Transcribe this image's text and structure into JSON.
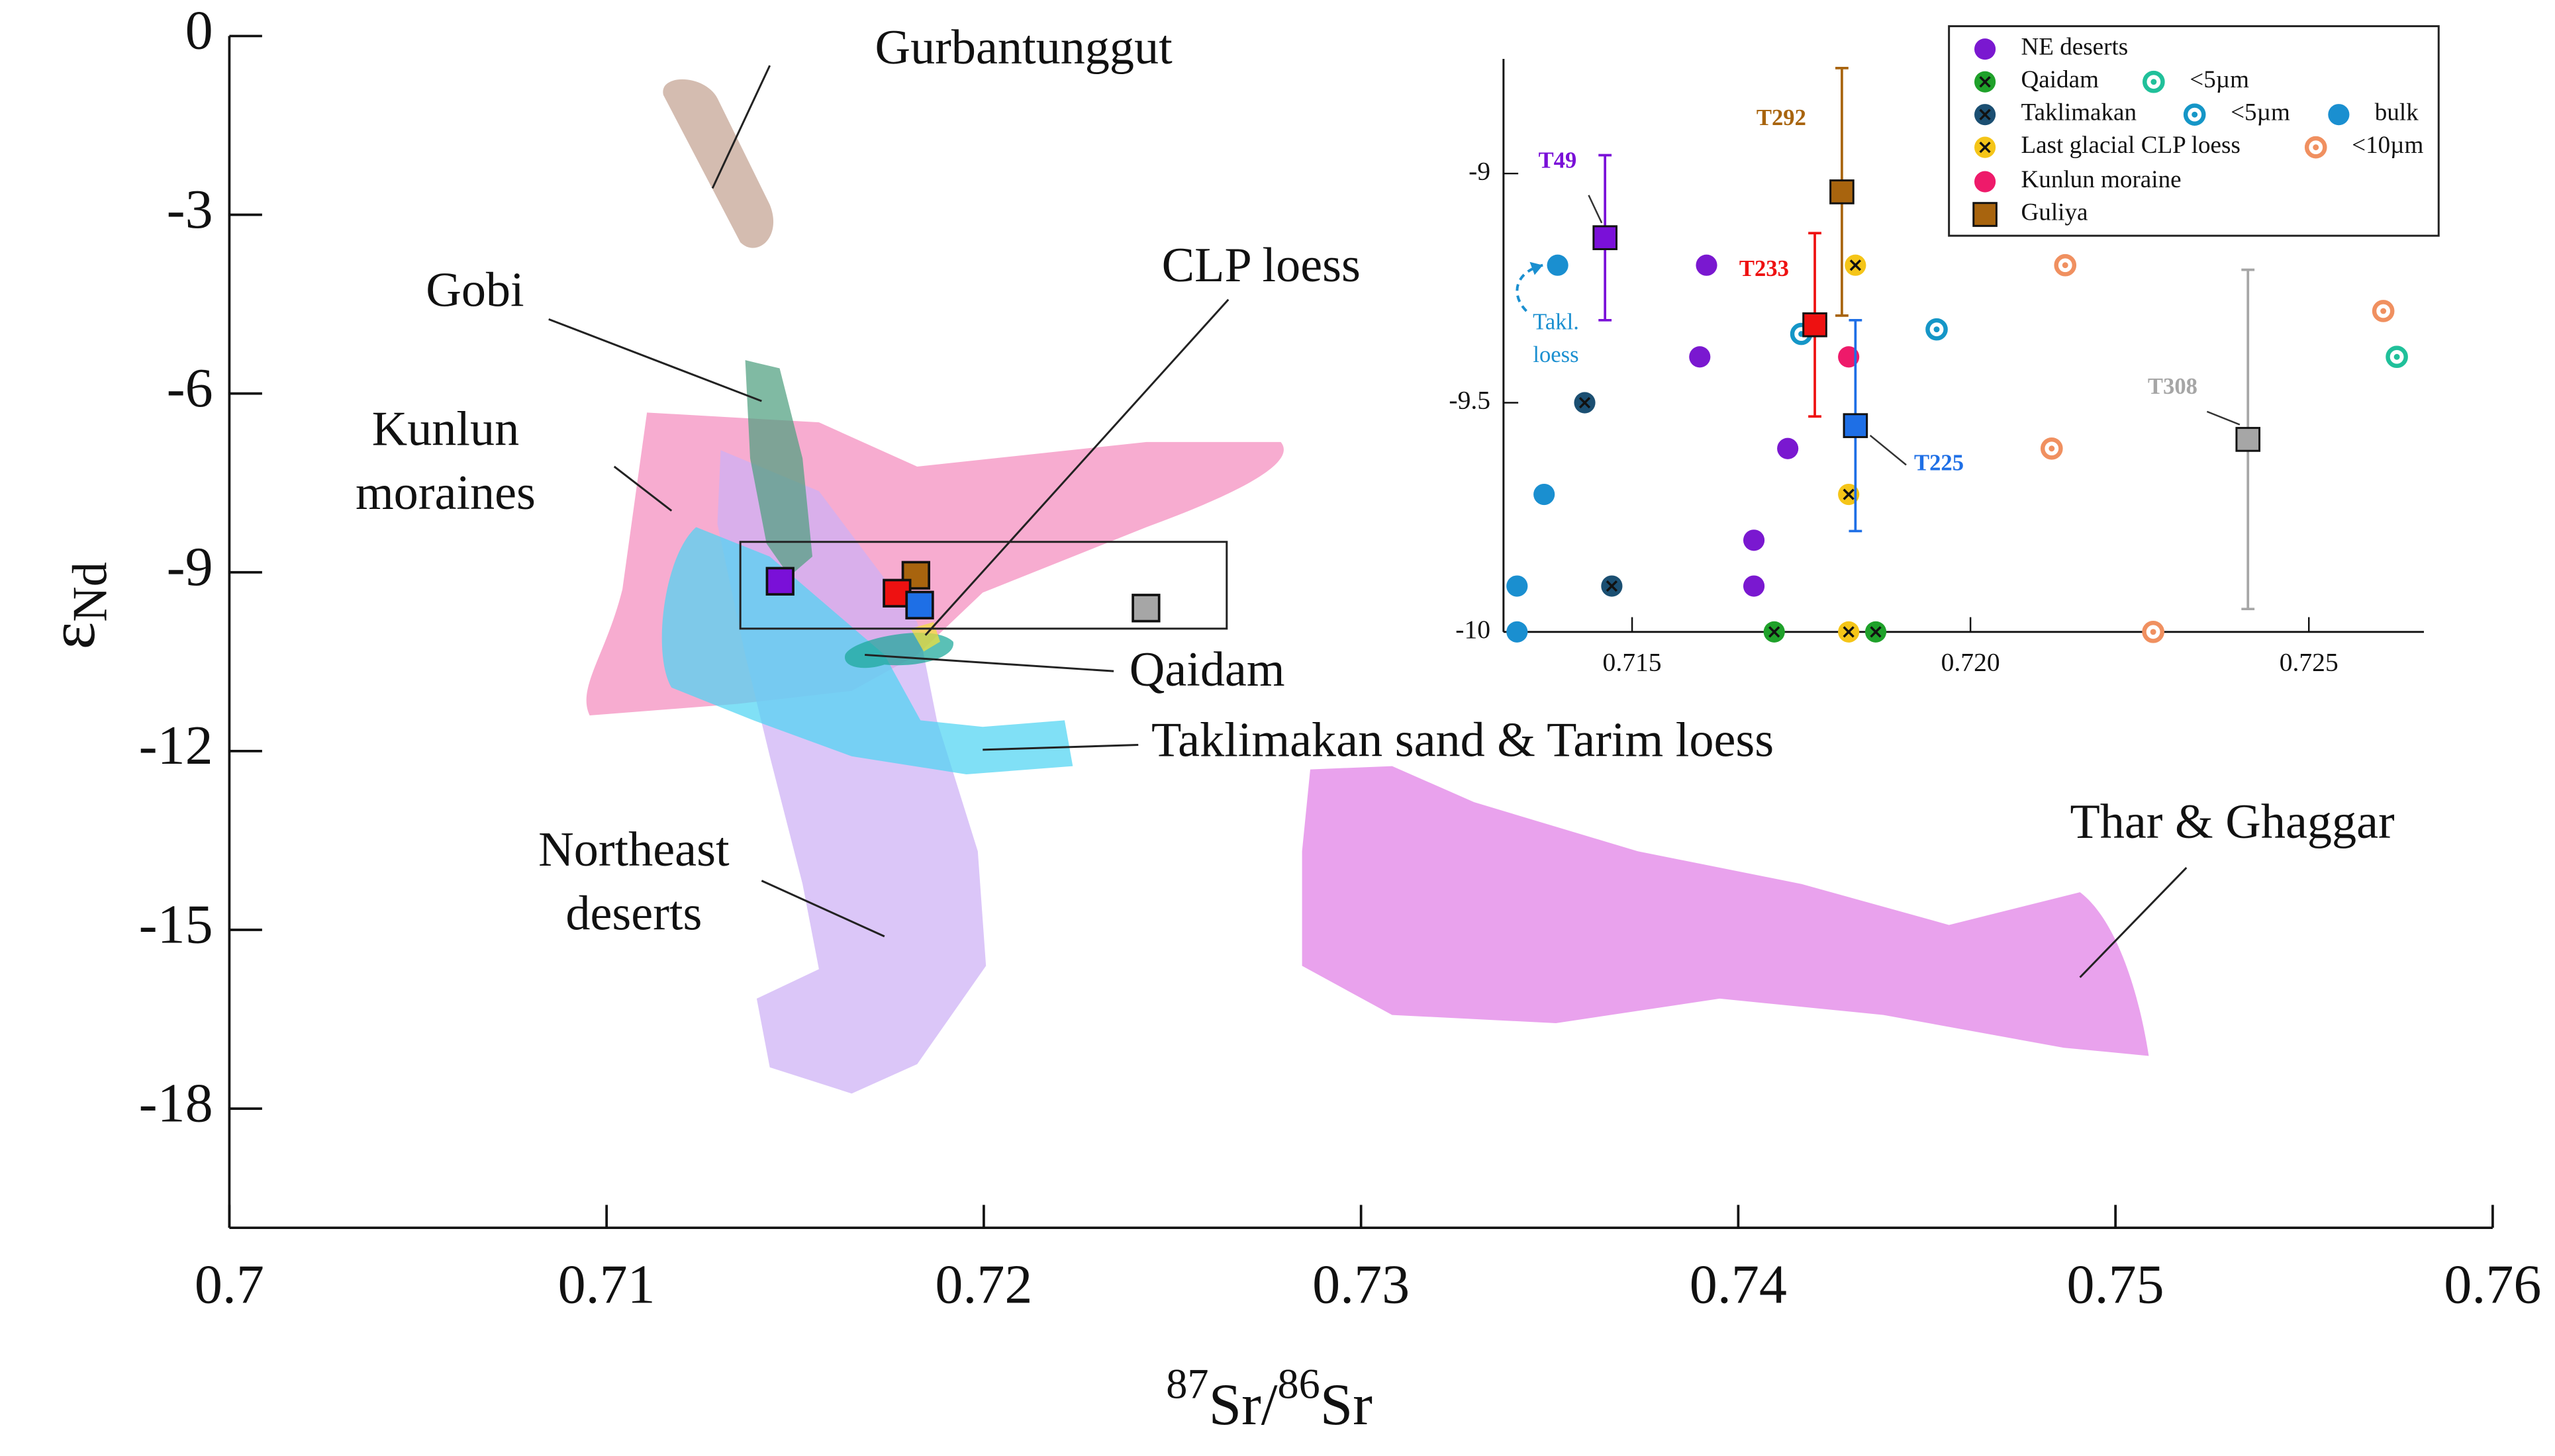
{
  "chart_data": [
    {
      "type": "scatter",
      "xlabel": [
        "87",
        "Sr/",
        "86",
        "Sr"
      ],
      "ylabel": [
        "ε",
        "Nd"
      ],
      "xlim": [
        0.7,
        0.76
      ],
      "xticks": [
        0.7,
        0.71,
        0.72,
        0.73,
        0.74,
        0.75,
        0.76
      ],
      "ylim": [
        -20,
        0
      ],
      "yticks": [
        0,
        -3,
        -6,
        -9,
        -12,
        -15,
        -18
      ],
      "regions": [
        {
          "label": [
            "Kunlun",
            "moraines"
          ],
          "color": "#f48cbe"
        },
        {
          "label": [
            "Northeast",
            "deserts"
          ],
          "color": "#cdb0f5"
        },
        {
          "label": [
            "Taklimakan sand & Tarim loess"
          ],
          "color": "#4fd4f2"
        },
        {
          "label": [
            "Gobi"
          ],
          "color": "#4f9f80"
        },
        {
          "label": [
            "Gurbantunggut"
          ],
          "color": "#c4a291"
        },
        {
          "label": [
            "Qaidam"
          ],
          "color": "#1aa79a"
        },
        {
          "label": [
            "CLP loess"
          ],
          "color": "#f2e13a"
        },
        {
          "label": [
            "Thar & Ghaggar"
          ],
          "color": "#e17ee6"
        }
      ],
      "series": [
        {
          "x": [
            0.7146,
            0.7182,
            0.7177,
            0.7183,
            0.7243
          ],
          "values": [
            -9.15,
            -9.05,
            -9.35,
            -9.55,
            -9.6
          ],
          "colors": [
            "#7a10d8",
            "#a8640e",
            "#ee1111",
            "#1e6fe6",
            "#a6a6a6"
          ]
        }
      ]
    },
    {
      "type": "scatter",
      "xlim": [
        0.7131,
        0.7267
      ],
      "xticks": [
        {
          "value": 0.715,
          "label": "0.715"
        },
        {
          "value": 0.72,
          "label": "0.720"
        },
        {
          "value": 0.725,
          "label": "0.725"
        }
      ],
      "ylim": [
        -10,
        -8.75
      ],
      "yticks": [
        -9,
        -9.5,
        -10
      ],
      "annotations": [
        [
          "Takl.",
          "loess"
        ]
      ],
      "series": [
        {
          "name": "NE deserts",
          "color": "#7a18d0",
          "marker": "circle",
          "x": [
            0.7161,
            0.716,
            0.7173,
            0.7168,
            0.7168
          ],
          "values": [
            -9.2,
            -9.4,
            -9.6,
            -9.8,
            -9.9
          ]
        },
        {
          "name": "Qaidam",
          "color": "#1fa12a",
          "marker": "circle-x",
          "x": [
            0.7171,
            0.7186
          ],
          "values": [
            -10,
            -10
          ]
        },
        {
          "name": "<5µm",
          "color": "#20c09a",
          "marker": "ring",
          "x": [
            0.7263
          ],
          "values": [
            -9.4
          ]
        },
        {
          "name": "Taklimakan",
          "color": "#1b4f72",
          "marker": "circle-x",
          "x": [
            0.7143,
            0.7147
          ],
          "values": [
            -9.5,
            -9.9
          ]
        },
        {
          "name": "<5µm",
          "color": "#1596c7",
          "marker": "ring",
          "x": [
            0.7175,
            0.7195
          ],
          "values": [
            -9.35,
            -9.34
          ]
        },
        {
          "name": "bulk",
          "color": "#1a8fd0",
          "marker": "circle",
          "x": [
            0.7139,
            0.7137,
            0.7133,
            0.7133
          ],
          "values": [
            -9.2,
            -9.7,
            -9.9,
            -10
          ]
        },
        {
          "name": "Last glacial CLP loess",
          "color": "#f5c518",
          "marker": "circle-x",
          "x": [
            0.7183,
            0.7182,
            0.7182
          ],
          "values": [
            -9.2,
            -9.7,
            -10
          ]
        },
        {
          "name": "<10µm",
          "color": "#f09060",
          "marker": "ring",
          "x": [
            0.7214,
            0.7261,
            0.7212,
            0.7227
          ],
          "values": [
            -9.2,
            -9.3,
            -9.6,
            -10
          ]
        },
        {
          "name": "Kunlun moraine",
          "color": "#ee1a6a",
          "marker": "circle",
          "x": [
            0.7182
          ],
          "values": [
            -9.4
          ]
        },
        {
          "name": "Guliya",
          "color": "#a8640e",
          "marker": "square",
          "x": [
            0.7146,
            0.7181,
            0.7177,
            0.7183,
            0.7241
          ],
          "values": [
            -9.14,
            -9.04,
            -9.33,
            -9.55,
            -9.58
          ],
          "errors": [
            0.18,
            0.27,
            0.2,
            0.23,
            0.37
          ],
          "point_labels": [
            "T49",
            "T292",
            "T233",
            "T225",
            "T308"
          ],
          "colors": [
            "#7a10d8",
            "#a8640e",
            "#ee1111",
            "#1e6fe6",
            "#a6a6a6"
          ]
        }
      ]
    }
  ]
}
